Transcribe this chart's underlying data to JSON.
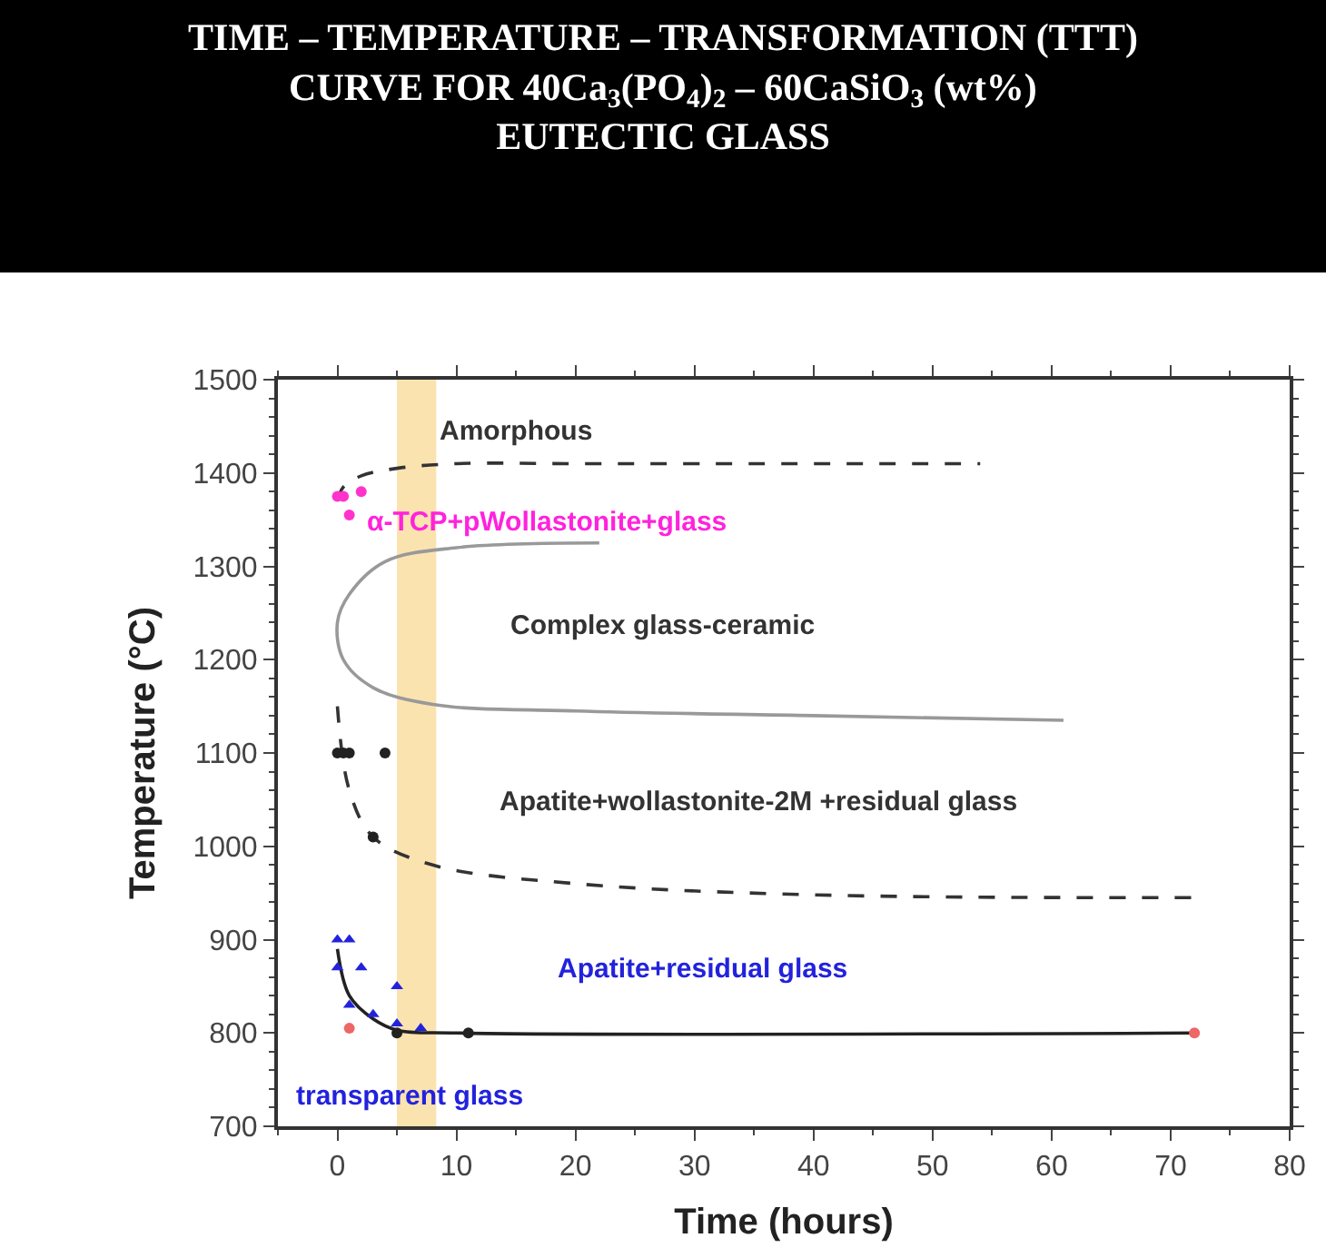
{
  "chart_data": {
    "type": "line",
    "title": "TIME – TEMPERATURE – TRANSFORMATION (TTT)\nCURVE FOR 40Ca$_{3}$(PO$_{4}$)$_{2}$ – 60CaSiO$_{3}$ (wt%)\nEUTECTIC GLASS",
    "xlabel": "Time (hours)",
    "ylabel": "Temperature (°C)",
    "xlim": [
      -5,
      80
    ],
    "xticks": [
      0,
      10,
      20,
      30,
      40,
      50,
      60,
      70,
      80
    ],
    "ylim": [
      700,
      1500
    ],
    "yticks": [
      700,
      800,
      900,
      1000,
      1100,
      1200,
      1300,
      1400,
      1500
    ],
    "grid": false,
    "series": [
      {
        "line_style": "dashed",
        "color": "#333333",
        "x": [
          0,
          0.5,
          2,
          5,
          10,
          20,
          54
        ],
        "values": [
          1370,
          1385,
          1397,
          1405,
          1410,
          1410,
          1410
        ]
      },
      {
        "line_style": "solid",
        "color": "#999999",
        "x": [
          22,
          10,
          4,
          1,
          0,
          0.5,
          3,
          8,
          20,
          40,
          61
        ],
        "values": [
          1325,
          1320,
          1305,
          1270,
          1240,
          1200,
          1170,
          1152,
          1145,
          1140,
          1135
        ]
      },
      {
        "line_style": "dashed",
        "color": "#333333",
        "x": [
          0,
          1,
          3,
          8,
          20,
          40,
          72
        ],
        "values": [
          1150,
          1060,
          1010,
          980,
          960,
          948,
          945
        ]
      },
      {
        "line_style": "solid",
        "color": "#222222",
        "x": [
          0,
          1,
          3,
          5,
          10,
          72
        ],
        "values": [
          890,
          840,
          815,
          803,
          800,
          800
        ]
      },
      {
        "type": "scatter",
        "marker": "circle",
        "color": "#ff33cc",
        "x": [
          0,
          0.5,
          2,
          1
        ],
        "values": [
          1375,
          1375,
          1380,
          1355
        ]
      },
      {
        "type": "scatter",
        "marker": "circle",
        "color": "#222222",
        "x": [
          0,
          0.5,
          1,
          4,
          3,
          5,
          11
        ],
        "values": [
          1100,
          1100,
          1100,
          1100,
          1010,
          800,
          800
        ]
      },
      {
        "type": "scatter",
        "marker": "triangle",
        "color": "#2222dd",
        "x": [
          0,
          1,
          2,
          0,
          1,
          3,
          5,
          5,
          7
        ],
        "values": [
          900,
          900,
          870,
          870,
          830,
          820,
          850,
          810,
          805
        ]
      },
      {
        "type": "scatter",
        "marker": "circle",
        "color": "#ee6666",
        "x": [
          1,
          72
        ],
        "values": [
          805,
          800
        ]
      }
    ],
    "bands": [
      {
        "axis": "x",
        "from": 5,
        "to": 8.3,
        "color": "#fbe3b0"
      }
    ],
    "annotations": [
      "Amorphous",
      "α-TCP+pWollastonite+glass",
      "Complex glass-ceramic",
      "Apatite+wollastonite-2M +residual glass",
      "Apatite+residual glass",
      "transparent glass"
    ]
  }
}
